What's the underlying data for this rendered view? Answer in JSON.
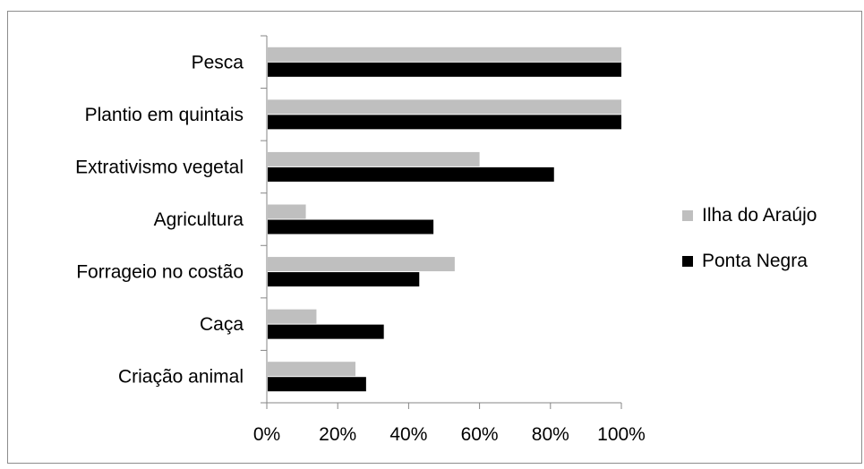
{
  "chart_data": {
    "type": "bar",
    "orientation": "horizontal",
    "categories": [
      "Pesca",
      "Plantio em quintais",
      "Extrativismo vegetal",
      "Agricultura",
      "Forrageio no costão",
      "Caça",
      "Criação animal"
    ],
    "series": [
      {
        "name": "Ilha do Araújo",
        "color": "#bfbfbf",
        "values": [
          100,
          100,
          60,
          11,
          53,
          14,
          25
        ]
      },
      {
        "name": "Ponta Negra",
        "color": "#000000",
        "values": [
          100,
          100,
          81,
          47,
          43,
          33,
          28
        ]
      }
    ],
    "x_ticks": [
      "0%",
      "20%",
      "40%",
      "60%",
      "80%",
      "100%"
    ],
    "xlim": [
      0,
      100
    ],
    "grid": false,
    "legend_position": "right",
    "title": "",
    "xlabel": "",
    "ylabel": ""
  }
}
